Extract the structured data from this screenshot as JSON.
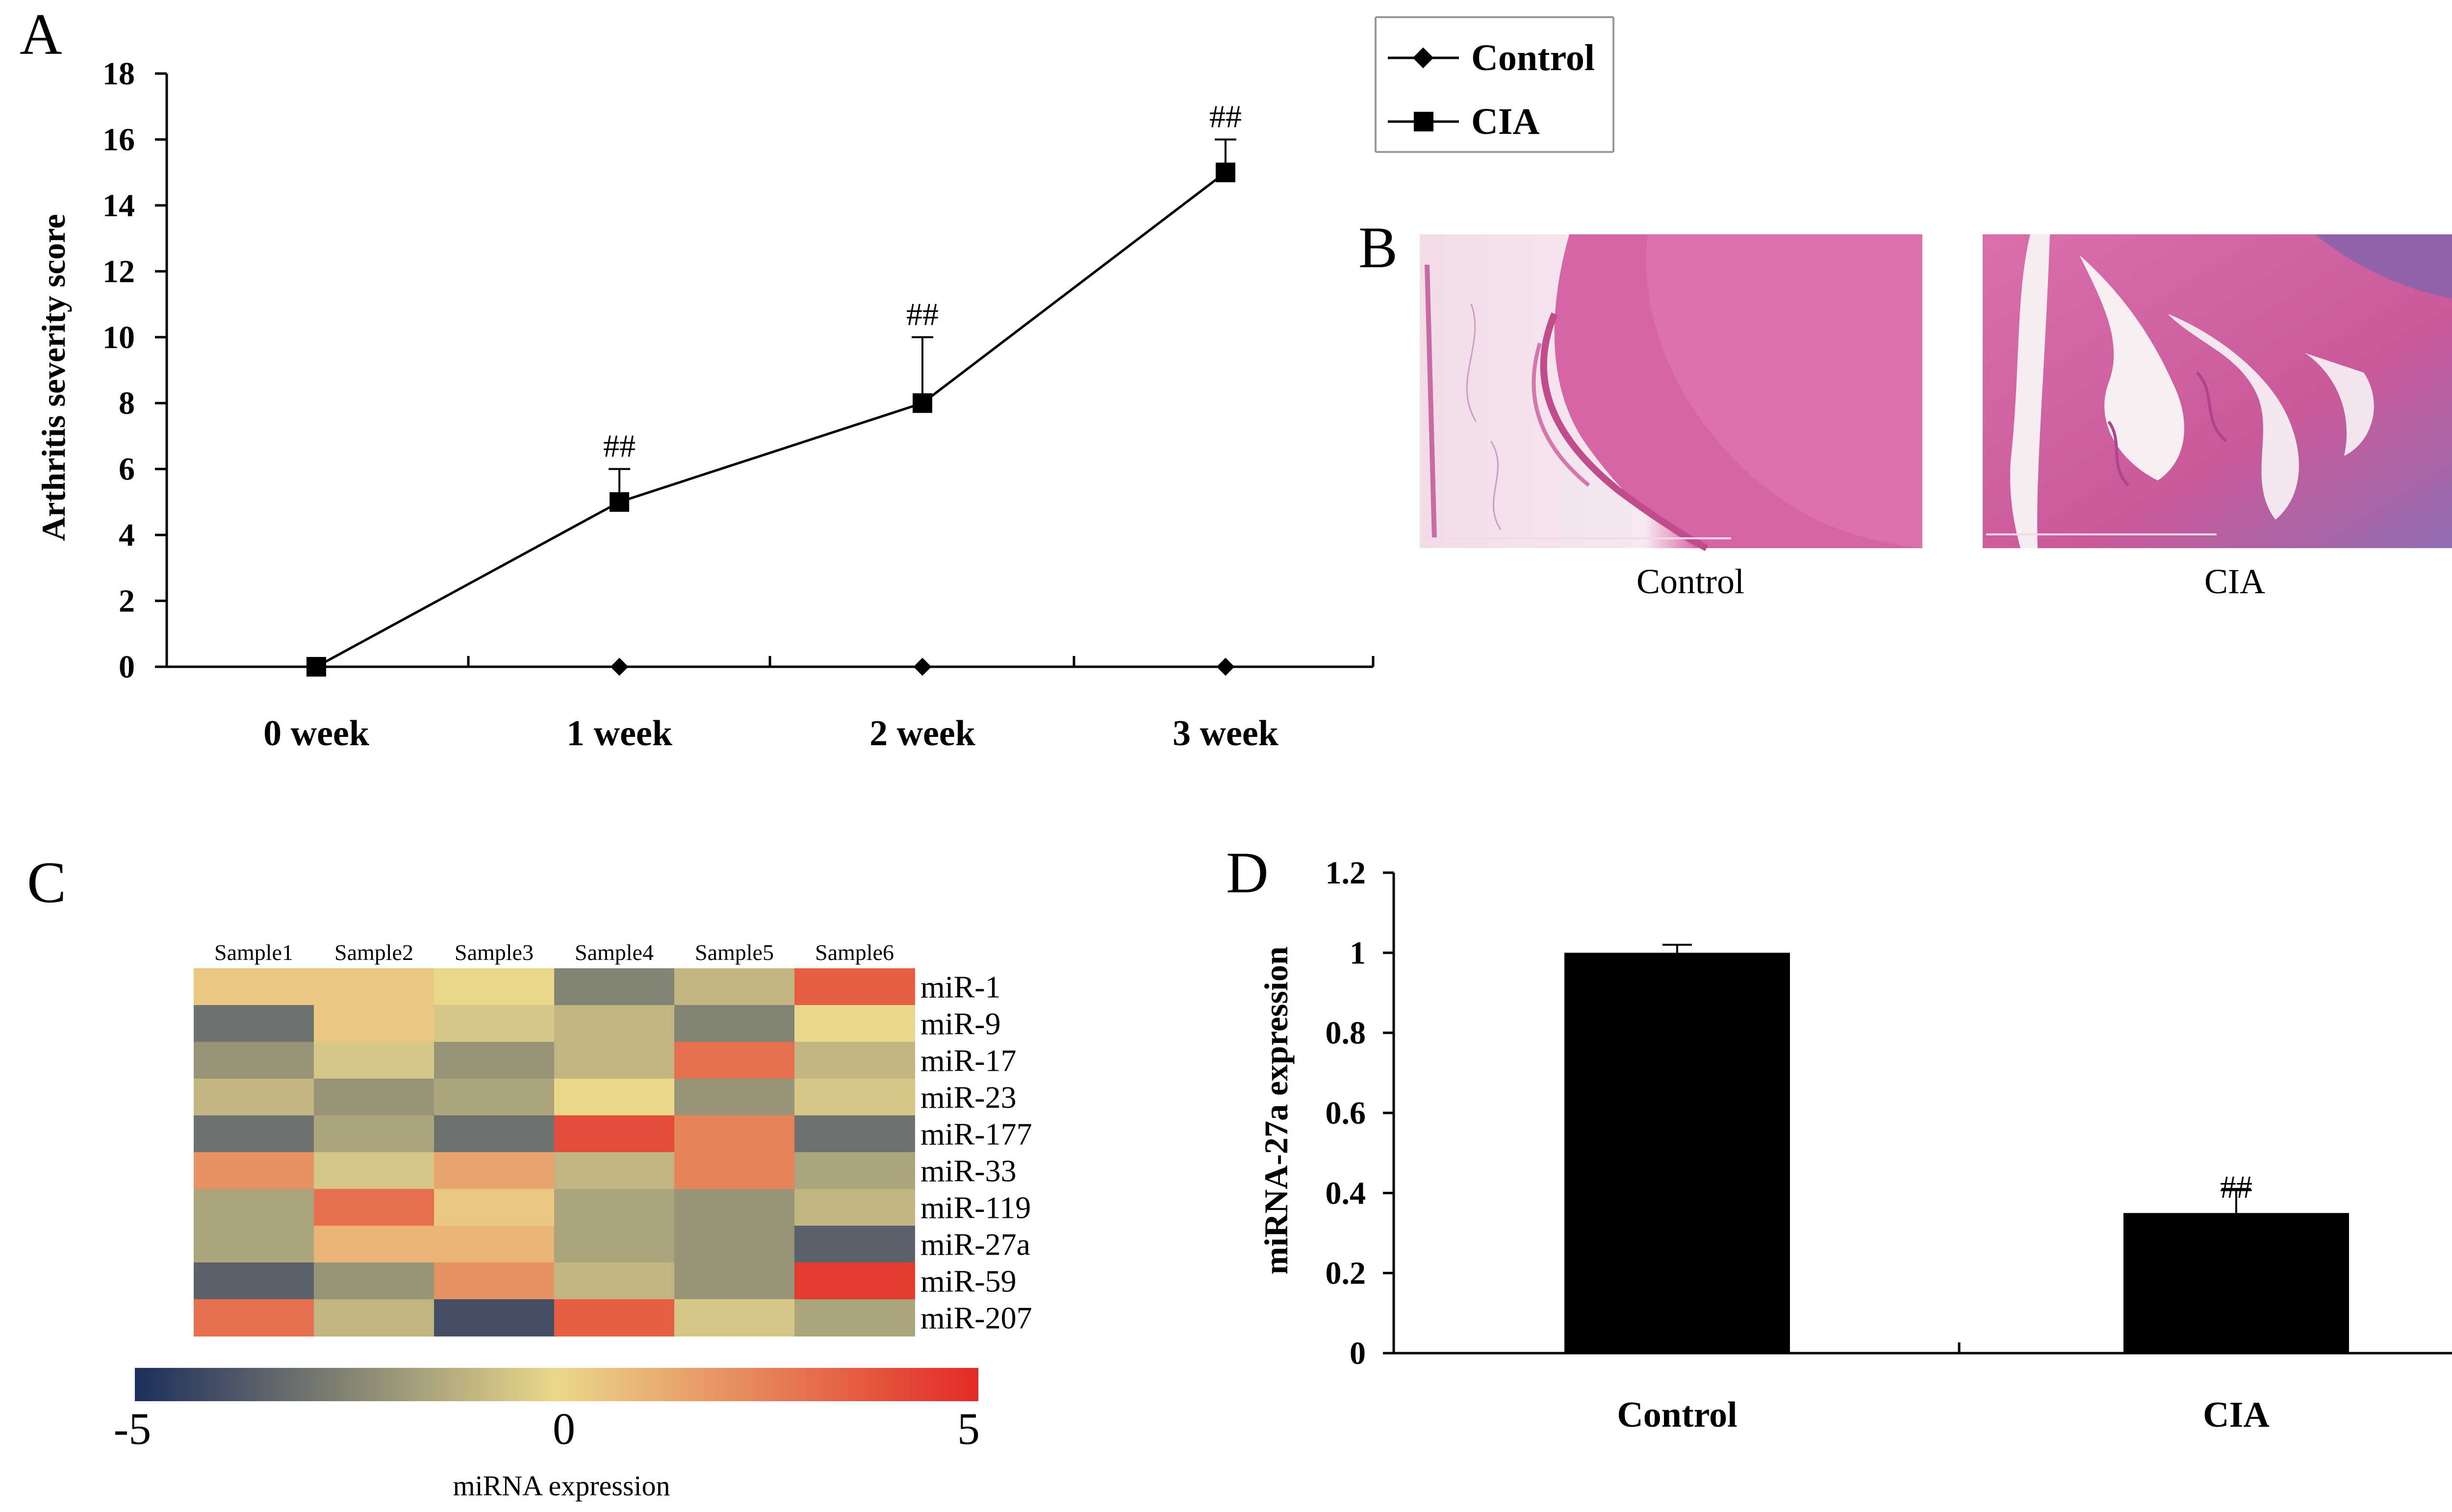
{
  "panels": {
    "a": "A",
    "b": "B",
    "c": "C",
    "d": "D"
  },
  "chart_data": [
    {
      "panel": "A",
      "type": "line",
      "title": "",
      "xlabel": "",
      "ylabel": "Arthritis severity score",
      "categories": [
        "0 week",
        "1 week",
        "2 week",
        "3 week"
      ],
      "ylim": [
        0,
        18
      ],
      "yticks": [
        0,
        2,
        4,
        6,
        8,
        10,
        12,
        14,
        16,
        18
      ],
      "series": [
        {
          "name": "Control",
          "marker": "diamond",
          "values": [
            0,
            0,
            0,
            0
          ],
          "errors": [
            0,
            0,
            0,
            0
          ]
        },
        {
          "name": "CIA",
          "marker": "square",
          "values": [
            0,
            5,
            8,
            15
          ],
          "errors": [
            0,
            1,
            2,
            1
          ]
        }
      ],
      "annotations": [
        "",
        "##",
        "##",
        "##"
      ],
      "legend": {
        "position": "top-right",
        "entries": [
          "Control",
          "CIA"
        ]
      }
    },
    {
      "panel": "C",
      "type": "heatmap",
      "title": "",
      "columns": [
        "Sample1",
        "Sample2",
        "Sample3",
        "Sample4",
        "Sample5",
        "Sample6"
      ],
      "rows": [
        "miR-1",
        "miR-9",
        "miR-17",
        "miR-23",
        "miR-177",
        "miR-33",
        "miR-119",
        "miR-27a",
        "miR-59",
        "miR-207"
      ],
      "values": [
        [
          0.5,
          0.5,
          0,
          -2.5,
          -1,
          3.5
        ],
        [
          -3,
          0.5,
          -0.5,
          -1,
          -2.5,
          0
        ],
        [
          -2,
          -0.5,
          -2,
          -1,
          3,
          -1
        ],
        [
          -1,
          -2,
          -1.5,
          0,
          -2,
          -0.5
        ],
        [
          -3,
          -1.5,
          -3,
          4,
          2.5,
          -3
        ],
        [
          2,
          -0.5,
          1.5,
          -1,
          2.5,
          -1.5
        ],
        [
          -1.5,
          3,
          0.5,
          -1.5,
          -2,
          -1
        ],
        [
          -1.5,
          1,
          1,
          -1.5,
          -2,
          -3.5
        ],
        [
          -3.5,
          -2,
          2,
          -1,
          -2,
          4.5
        ],
        [
          3,
          -1,
          -4,
          3.5,
          -0.5,
          -1.5
        ]
      ],
      "colorbar": {
        "min": -5,
        "mid": 0,
        "max": 5,
        "min_label": "-5",
        "mid_label": "0",
        "max_label": "5",
        "label": "miRNA expression",
        "colors": [
          "#1c2e5c",
          "#ead88a",
          "#e32a25"
        ]
      }
    },
    {
      "panel": "D",
      "type": "bar",
      "title": "",
      "xlabel": "",
      "ylabel": "miRNA-27a expression",
      "categories": [
        "Control",
        "CIA"
      ],
      "values": [
        1.0,
        0.35
      ],
      "errors": [
        0.02,
        0.06
      ],
      "ylim": [
        0,
        1.2
      ],
      "yticks": [
        "0",
        "0.2",
        "0.4",
        "0.6",
        "0.8",
        "1",
        "1.2"
      ],
      "annotations": [
        "",
        "##"
      ]
    }
  ],
  "histology": {
    "images": [
      {
        "caption": "Control",
        "icon": "histology-control-image"
      },
      {
        "caption": "CIA",
        "icon": "histology-cia-image"
      }
    ]
  }
}
